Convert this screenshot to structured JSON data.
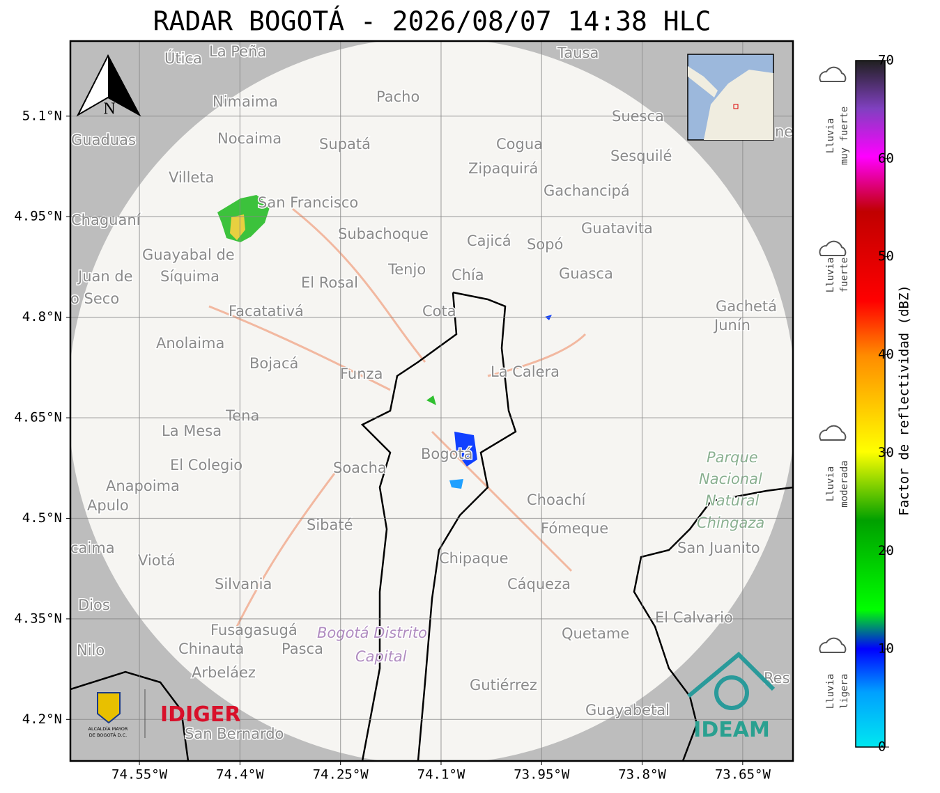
{
  "title": "RADAR BOGOTÁ - 2026/08/07 14:38 HLC",
  "map": {
    "xlim": [
      -74.653,
      -73.575
    ],
    "ylim": [
      4.138,
      5.212
    ],
    "xticks": [
      {
        "value": -74.55,
        "label": "74.55°W"
      },
      {
        "value": -74.4,
        "label": "74.4°W"
      },
      {
        "value": -74.25,
        "label": "74.25°W"
      },
      {
        "value": -74.1,
        "label": "74.1°W"
      },
      {
        "value": -73.95,
        "label": "73.95°W"
      },
      {
        "value": -73.8,
        "label": "73.8°W"
      },
      {
        "value": -73.65,
        "label": "73.65°W"
      }
    ],
    "yticks": [
      {
        "value": 5.1,
        "label": "5.1°N"
      },
      {
        "value": 4.95,
        "label": "4.95°N"
      },
      {
        "value": 4.8,
        "label": "4.8°N"
      },
      {
        "value": 4.65,
        "label": "4.65°N"
      },
      {
        "value": 4.5,
        "label": "4.5°N"
      },
      {
        "value": 4.35,
        "label": "4.35°N"
      },
      {
        "value": 4.2,
        "label": "4.2°N"
      }
    ],
    "north_label": "N",
    "places": [
      "Útica",
      "La Peña",
      "Tausa",
      "Pacho",
      "Nimaima",
      "Guaduas",
      "Nocaima",
      "Supatá",
      "Cogua",
      "Suesca",
      "Sesquilé",
      "Villeta",
      "Zipaquirá",
      "Gachancipá",
      "San Francisco",
      "Chaguaní",
      "Subachoque",
      "Cajicá",
      "Sopó",
      "Guatavita",
      "Guayabal de",
      "Síquima",
      "Juan de",
      "o Seco",
      "Tenjo",
      "Chía",
      "El Rosal",
      "Guasca",
      "Facatativá",
      "Cota",
      "Gachetá",
      "Junín",
      "Anolaima",
      "Bojacá",
      "Funza",
      "La Calera",
      "Tena",
      "La Mesa",
      "Bogotá",
      "El Colegio",
      "Soacha",
      "Anapoima",
      "Apulo",
      "Choachí",
      "Sibaté",
      "Fómeque",
      "San Juanito",
      "caima",
      "Viotá",
      "Chipaque",
      "Silvania",
      "Cáqueza",
      "Dios",
      "El Calvario",
      "Fusagasugá",
      "Quetame",
      "Nilo",
      "Chinauta",
      "Pasca",
      "Arbeláez",
      "Gutiérrez",
      "Guayabetal",
      "San Bernardo",
      "Res",
      "ne"
    ],
    "park_labels": [
      "Parque",
      "Nacional",
      "Natural",
      "Chingaza",
      "Bogotá Distrito",
      "Capital"
    ]
  },
  "logos": {
    "alcaldia": "ALCALDÍA MAYOR",
    "alcaldia2": "DE BOGOTÁ D.C.",
    "idiger": "IDIGER",
    "ideam": "IDEAM"
  },
  "colorbar": {
    "label": "Factor de reflectividad (dBZ)",
    "lim": [
      0,
      70
    ],
    "ticks": [
      0,
      10,
      20,
      30,
      40,
      50,
      60,
      70
    ],
    "rain_levels": [
      [
        "Lluvia",
        "muy fuerte"
      ],
      [
        "Lluvia",
        "fuerte"
      ],
      [
        "Lluvia",
        "moderada"
      ],
      [
        "Lluvia",
        "ligera"
      ]
    ]
  }
}
